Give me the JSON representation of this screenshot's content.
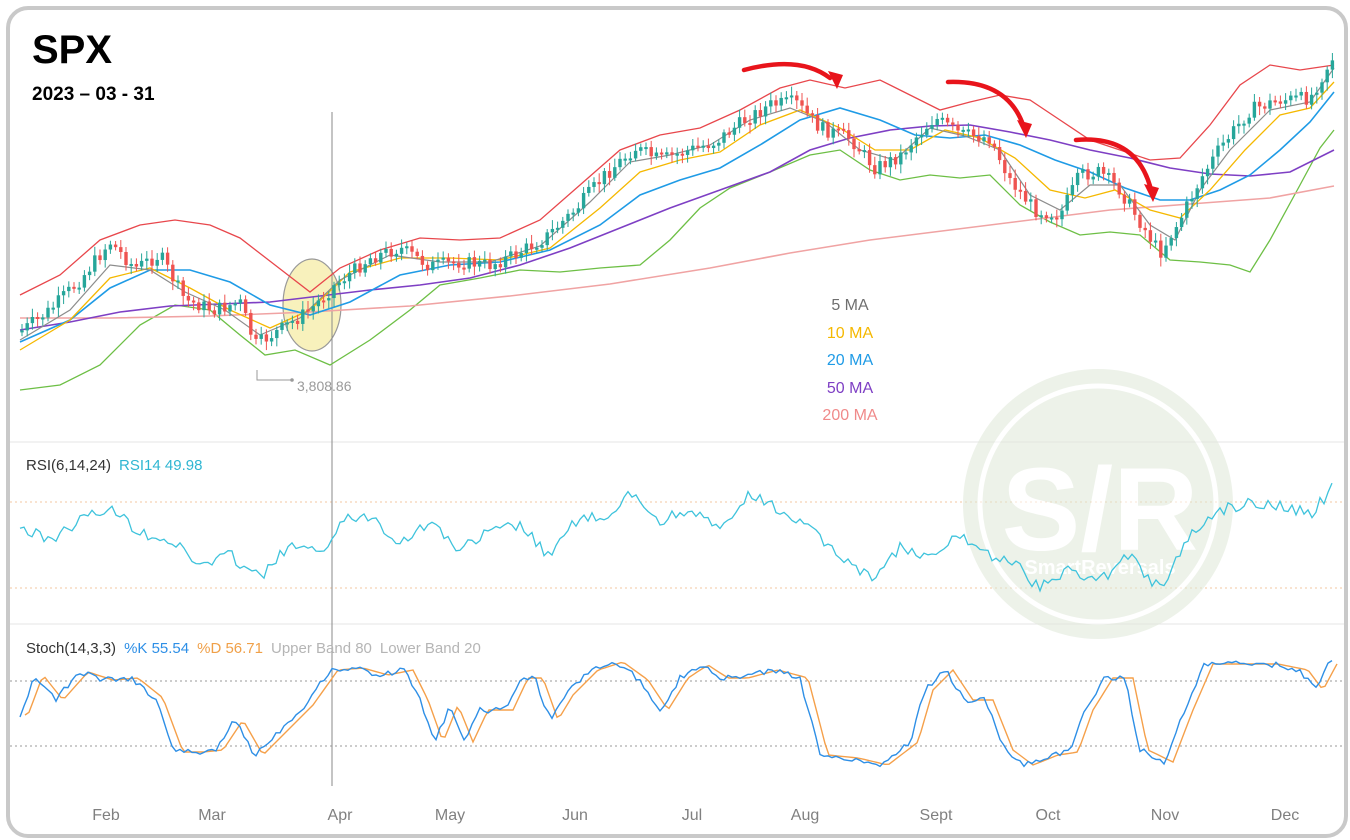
{
  "header": {
    "ticker": "SPX",
    "date": "2023 – 03 - 31"
  },
  "colors": {
    "ma5": "#8c8c8c",
    "ma10": "#f5b800",
    "ma20": "#1f9be6",
    "ma50": "#7e3fc4",
    "ma200": "#f0a3a3",
    "bb_upper": "#e8474c",
    "bb_lower": "#6dbf45",
    "candle_up": "#26a69a",
    "candle_down": "#ef5350",
    "rsi": "#3ec3dc",
    "stoch_k": "#2e8fe6",
    "stoch_d": "#f5a04a",
    "arrow": "#e8141b"
  },
  "price_pane": {
    "low_annotation": "3,808.86",
    "ma_legend": [
      {
        "label": "5 MA",
        "color": "#6f6f6f"
      },
      {
        "label": "10 MA",
        "color": "#f5b800"
      },
      {
        "label": "20 MA",
        "color": "#1f9be6"
      },
      {
        "label": "50 MA",
        "color": "#7e3fc4"
      },
      {
        "label": "200 MA",
        "color": "#f08a8a"
      }
    ]
  },
  "rsi_pane": {
    "label": "RSI(6,14,24)",
    "value_label": "RSI14 49.98"
  },
  "stoch_pane": {
    "label": "Stoch(14,3,3)",
    "k_label": "%K 55.54",
    "d_label": "%D 56.71",
    "upper_label": "Upper Band 80",
    "lower_label": "Lower Band 20"
  },
  "x_axis": {
    "months": [
      "Feb",
      "Mar",
      "Apr",
      "May",
      "Jun",
      "Jul",
      "Aug",
      "Sept",
      "Oct",
      "Nov",
      "Dec"
    ]
  },
  "watermark": {
    "big": "S/R",
    "small": "SmartReversals"
  },
  "chart_data": {
    "type": "line",
    "title": "SPX",
    "x_ticks": [
      "Feb",
      "Mar",
      "Apr",
      "May",
      "Jun",
      "Jul",
      "Aug",
      "Sept",
      "Oct",
      "Nov",
      "Dec"
    ],
    "annotations": [
      "3,808.86"
    ],
    "series": [
      {
        "name": "5 MA"
      },
      {
        "name": "10 MA"
      },
      {
        "name": "20 MA"
      },
      {
        "name": "50 MA"
      },
      {
        "name": "200 MA"
      }
    ],
    "rsi": {
      "label": "RSI(6,14,24)",
      "rsi14": 49.98
    },
    "stoch": {
      "label": "Stoch(14,3,3)",
      "k": 55.54,
      "d": 56.71,
      "upper_band": 80,
      "lower_band": 20
    }
  }
}
